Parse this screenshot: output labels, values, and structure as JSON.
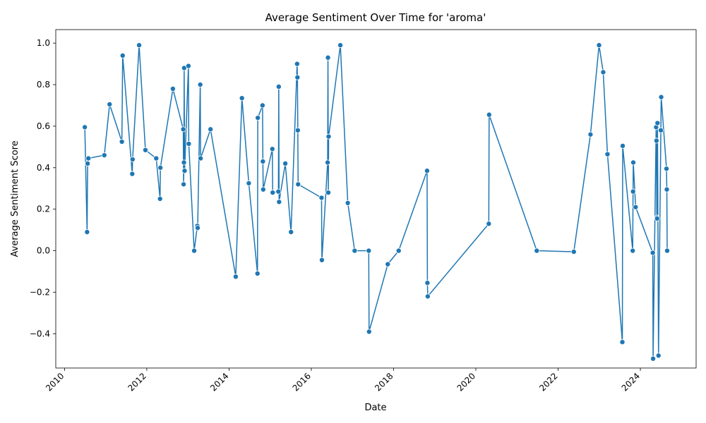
{
  "chart_data": {
    "type": "line",
    "title": "Average Sentiment Over Time for 'aroma'",
    "xlabel": "Date",
    "ylabel": "Average Sentiment Score",
    "xlim": [
      "2009-10-15",
      "2025-05-10"
    ],
    "ylim": [
      -0.565,
      1.065
    ],
    "x_ticks": [
      "2010",
      "2012",
      "2014",
      "2016",
      "2018",
      "2020",
      "2022",
      "2024"
    ],
    "y_ticks": [
      "−0.4",
      "−0.2",
      "0.0",
      "0.2",
      "0.4",
      "0.6",
      "0.8",
      "1.0"
    ],
    "y_tick_values": [
      -0.4,
      -0.2,
      0.0,
      0.2,
      0.4,
      0.6,
      0.8,
      1.0
    ],
    "grid": false,
    "legend": "none",
    "series": [
      {
        "color": "#1f77b4",
        "points": [
          {
            "x": "2010-06-30",
            "y": 0.595
          },
          {
            "x": "2010-07-20",
            "y": 0.09
          },
          {
            "x": "2010-07-25",
            "y": 0.42
          },
          {
            "x": "2010-08-01",
            "y": 0.445
          },
          {
            "x": "2010-12-20",
            "y": 0.46
          },
          {
            "x": "2011-02-05",
            "y": 0.705
          },
          {
            "x": "2011-05-25",
            "y": 0.525
          },
          {
            "x": "2011-06-01",
            "y": 0.94
          },
          {
            "x": "2011-08-25",
            "y": 0.37
          },
          {
            "x": "2011-08-28",
            "y": 0.44
          },
          {
            "x": "2011-10-25",
            "y": 0.99
          },
          {
            "x": "2011-12-20",
            "y": 0.485
          },
          {
            "x": "2012-03-25",
            "y": 0.445
          },
          {
            "x": "2012-04-28",
            "y": 0.25
          },
          {
            "x": "2012-05-01",
            "y": 0.4
          },
          {
            "x": "2012-08-20",
            "y": 0.78
          },
          {
            "x": "2012-11-20",
            "y": 0.585
          },
          {
            "x": "2012-11-23",
            "y": 0.32
          },
          {
            "x": "2012-11-26",
            "y": 0.425
          },
          {
            "x": "2012-11-28",
            "y": 0.88
          },
          {
            "x": "2012-12-02",
            "y": 0.385
          },
          {
            "x": "2013-01-05",
            "y": 0.89
          },
          {
            "x": "2013-01-08",
            "y": 0.515
          },
          {
            "x": "2013-02-25",
            "y": 0.0
          },
          {
            "x": "2013-03-25",
            "y": 0.12
          },
          {
            "x": "2013-03-28",
            "y": 0.11
          },
          {
            "x": "2013-04-20",
            "y": 0.8
          },
          {
            "x": "2013-04-23",
            "y": 0.445
          },
          {
            "x": "2013-07-20",
            "y": 0.585
          },
          {
            "x": "2014-03-01",
            "y": -0.125
          },
          {
            "x": "2014-04-25",
            "y": 0.735
          },
          {
            "x": "2014-06-25",
            "y": 0.325
          },
          {
            "x": "2014-09-10",
            "y": -0.11
          },
          {
            "x": "2014-09-13",
            "y": 0.64
          },
          {
            "x": "2014-10-25",
            "y": 0.7
          },
          {
            "x": "2014-10-28",
            "y": 0.43
          },
          {
            "x": "2014-10-31",
            "y": 0.295
          },
          {
            "x": "2015-01-20",
            "y": 0.49
          },
          {
            "x": "2015-01-23",
            "y": 0.28
          },
          {
            "x": "2015-03-15",
            "y": 0.285
          },
          {
            "x": "2015-03-18",
            "y": 0.79
          },
          {
            "x": "2015-03-21",
            "y": 0.235
          },
          {
            "x": "2015-05-15",
            "y": 0.42
          },
          {
            "x": "2015-07-05",
            "y": 0.09
          },
          {
            "x": "2015-08-28",
            "y": 0.9
          },
          {
            "x": "2015-08-31",
            "y": 0.835
          },
          {
            "x": "2015-09-03",
            "y": 0.58
          },
          {
            "x": "2015-09-06",
            "y": 0.32
          },
          {
            "x": "2016-04-01",
            "y": 0.255
          },
          {
            "x": "2016-04-04",
            "y": -0.045
          },
          {
            "x": "2016-05-25",
            "y": 0.425
          },
          {
            "x": "2016-05-28",
            "y": 0.93
          },
          {
            "x": "2016-05-31",
            "y": 0.28
          },
          {
            "x": "2016-06-03",
            "y": 0.55
          },
          {
            "x": "2016-09-15",
            "y": 0.99
          },
          {
            "x": "2016-11-20",
            "y": 0.23
          },
          {
            "x": "2017-01-20",
            "y": 0.0
          },
          {
            "x": "2017-05-25",
            "y": 0.0
          },
          {
            "x": "2017-05-28",
            "y": -0.39
          },
          {
            "x": "2017-11-10",
            "y": -0.065
          },
          {
            "x": "2018-02-15",
            "y": 0.0
          },
          {
            "x": "2018-10-25",
            "y": 0.385
          },
          {
            "x": "2018-10-28",
            "y": -0.155
          },
          {
            "x": "2018-10-31",
            "y": -0.22
          },
          {
            "x": "2020-04-25",
            "y": 0.13
          },
          {
            "x": "2020-04-28",
            "y": 0.655
          },
          {
            "x": "2021-06-25",
            "y": 0.0
          },
          {
            "x": "2022-05-20",
            "y": -0.005
          },
          {
            "x": "2022-10-15",
            "y": 0.56
          },
          {
            "x": "2022-12-30",
            "y": 0.99
          },
          {
            "x": "2023-02-05",
            "y": 0.86
          },
          {
            "x": "2023-03-15",
            "y": 0.465
          },
          {
            "x": "2023-07-25",
            "y": -0.44
          },
          {
            "x": "2023-07-28",
            "y": 0.505
          },
          {
            "x": "2023-10-25",
            "y": 0.0
          },
          {
            "x": "2023-10-28",
            "y": 0.285
          },
          {
            "x": "2023-10-30",
            "y": 0.425
          },
          {
            "x": "2023-11-20",
            "y": 0.21
          },
          {
            "x": "2024-04-20",
            "y": -0.01
          },
          {
            "x": "2024-04-23",
            "y": -0.52
          },
          {
            "x": "2024-05-20",
            "y": 0.595
          },
          {
            "x": "2024-05-23",
            "y": 0.53
          },
          {
            "x": "2024-05-26",
            "y": 0.16
          },
          {
            "x": "2024-05-29",
            "y": 0.155
          },
          {
            "x": "2024-06-01",
            "y": 0.615
          },
          {
            "x": "2024-06-10",
            "y": -0.505
          },
          {
            "x": "2024-07-01",
            "y": 0.58
          },
          {
            "x": "2024-07-04",
            "y": 0.74
          },
          {
            "x": "2024-08-20",
            "y": 0.395
          },
          {
            "x": "2024-08-23",
            "y": 0.295
          },
          {
            "x": "2024-08-26",
            "y": 0.0
          }
        ]
      }
    ]
  }
}
